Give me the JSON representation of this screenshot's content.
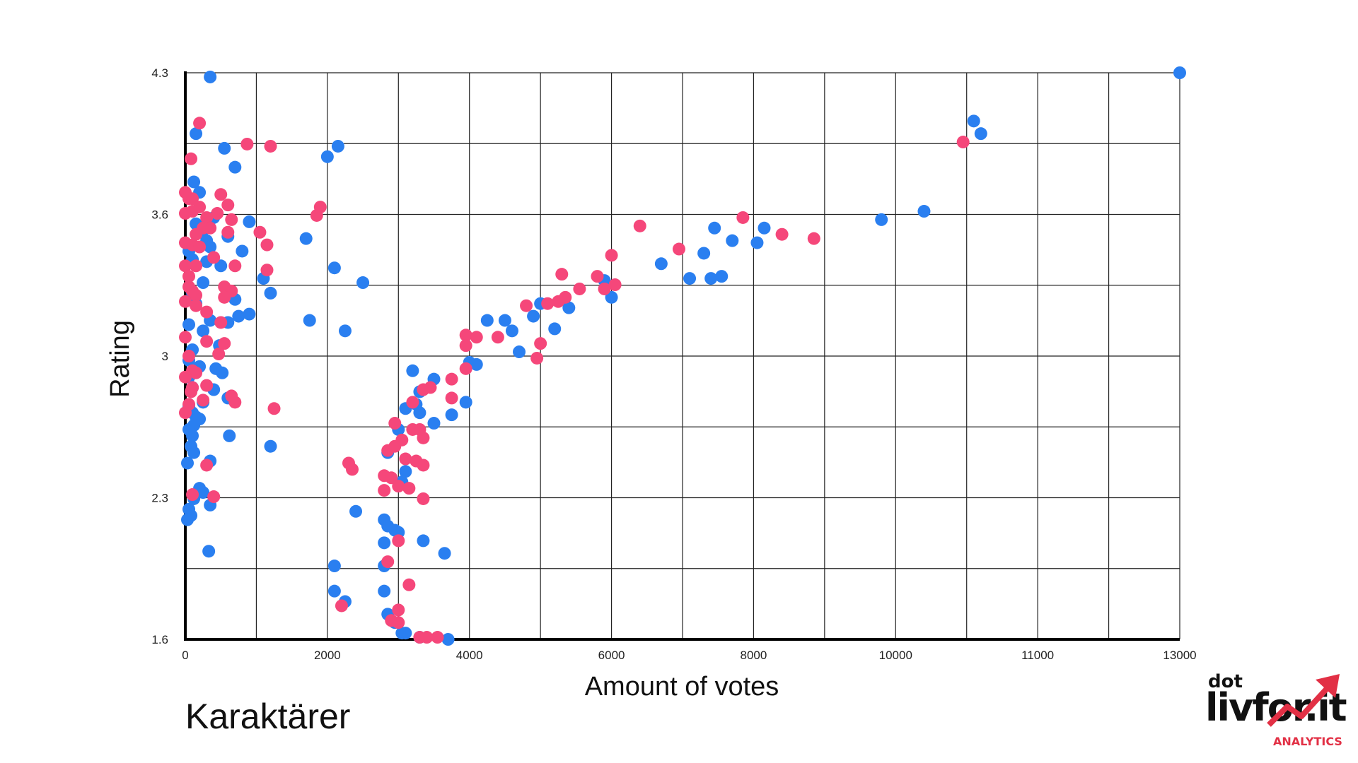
{
  "chart_data": {
    "type": "scatter",
    "title": "",
    "subtitle": "Karaktärer",
    "xlabel": "Amount of votes",
    "ylabel": "Rating",
    "xlim": [
      0,
      14000
    ],
    "ylim": [
      1.6,
      4.3
    ],
    "x_ticks": [
      "0",
      "2000",
      "4000",
      "6000",
      "8000",
      "10000",
      "11000",
      "13000"
    ],
    "y_ticks": [
      "1.6",
      "2.3",
      "3",
      "3.6",
      "4.3"
    ],
    "grid": true,
    "series": [
      {
        "color": "#2a7ff0",
        "points": [
          [
            350,
            4.28
          ],
          [
            150,
            4.01
          ],
          [
            700,
            3.85
          ],
          [
            120,
            3.78
          ],
          [
            200,
            3.73
          ],
          [
            400,
            3.61
          ],
          [
            150,
            3.58
          ],
          [
            250,
            3.55
          ],
          [
            300,
            3.5
          ],
          [
            50,
            3.45
          ],
          [
            100,
            3.41
          ],
          [
            350,
            3.47
          ],
          [
            300,
            3.4
          ],
          [
            500,
            3.38
          ],
          [
            250,
            3.3
          ],
          [
            100,
            3.25
          ],
          [
            150,
            3.2
          ],
          [
            700,
            3.22
          ],
          [
            50,
            3.1
          ],
          [
            350,
            3.12
          ],
          [
            600,
            3.11
          ],
          [
            900,
            3.15
          ],
          [
            750,
            3.14
          ],
          [
            250,
            3.07
          ],
          [
            480,
            3.0
          ],
          [
            100,
            2.98
          ],
          [
            50,
            2.93
          ],
          [
            200,
            2.9
          ],
          [
            430,
            2.89
          ],
          [
            520,
            2.87
          ],
          [
            50,
            2.85
          ],
          [
            100,
            2.8
          ],
          [
            400,
            2.79
          ],
          [
            600,
            2.75
          ],
          [
            250,
            2.73
          ],
          [
            50,
            2.71
          ],
          [
            100,
            2.68
          ],
          [
            150,
            2.66
          ],
          [
            200,
            2.65
          ],
          [
            120,
            2.62
          ],
          [
            50,
            2.6
          ],
          [
            100,
            2.57
          ],
          [
            620,
            2.57
          ],
          [
            80,
            2.52
          ],
          [
            120,
            2.49
          ],
          [
            30,
            2.44
          ],
          [
            350,
            2.45
          ],
          [
            250,
            2.3
          ],
          [
            200,
            2.32
          ],
          [
            120,
            2.27
          ],
          [
            50,
            2.22
          ],
          [
            350,
            2.24
          ],
          [
            80,
            2.19
          ],
          [
            30,
            2.17
          ],
          [
            330,
            2.02
          ],
          [
            900,
            3.59
          ],
          [
            1100,
            3.32
          ],
          [
            1200,
            3.25
          ],
          [
            800,
            3.45
          ],
          [
            600,
            3.52
          ],
          [
            550,
            3.94
          ],
          [
            1700,
            3.51
          ],
          [
            1750,
            3.12
          ],
          [
            2000,
            3.9
          ],
          [
            2150,
            3.95
          ],
          [
            2100,
            3.37
          ],
          [
            2500,
            3.3
          ],
          [
            2250,
            3.07
          ],
          [
            1200,
            2.52
          ],
          [
            2400,
            2.21
          ],
          [
            2100,
            1.95
          ],
          [
            2100,
            1.83
          ],
          [
            2250,
            1.78
          ],
          [
            3200,
            2.88
          ],
          [
            3500,
            2.84
          ],
          [
            3300,
            2.78
          ],
          [
            3250,
            2.72
          ],
          [
            3100,
            2.7
          ],
          [
            3000,
            2.6
          ],
          [
            3300,
            2.68
          ],
          [
            3500,
            2.63
          ],
          [
            3750,
            2.67
          ],
          [
            3950,
            2.73
          ],
          [
            2850,
            2.49
          ],
          [
            3050,
            2.35
          ],
          [
            3100,
            2.4
          ],
          [
            2800,
            2.17
          ],
          [
            2850,
            2.14
          ],
          [
            2950,
            2.12
          ],
          [
            3000,
            2.11
          ],
          [
            2800,
            2.06
          ],
          [
            3350,
            2.07
          ],
          [
            3650,
            2.01
          ],
          [
            2800,
            1.95
          ],
          [
            2800,
            1.83
          ],
          [
            2850,
            1.72
          ],
          [
            2950,
            1.68
          ],
          [
            3050,
            1.63
          ],
          [
            3100,
            1.63
          ],
          [
            3300,
            1.61
          ],
          [
            3700,
            1.6
          ],
          [
            4000,
            2.92
          ],
          [
            4100,
            2.91
          ],
          [
            4250,
            3.12
          ],
          [
            4500,
            3.12
          ],
          [
            4600,
            3.07
          ],
          [
            4700,
            2.97
          ],
          [
            4900,
            3.14
          ],
          [
            5000,
            3.2
          ],
          [
            5200,
            3.08
          ],
          [
            5400,
            3.18
          ],
          [
            5900,
            3.31
          ],
          [
            6000,
            3.23
          ],
          [
            6700,
            3.39
          ],
          [
            7100,
            3.32
          ],
          [
            7300,
            3.44
          ],
          [
            7450,
            3.56
          ],
          [
            7400,
            3.32
          ],
          [
            7550,
            3.33
          ],
          [
            7700,
            3.5
          ],
          [
            8050,
            3.49
          ],
          [
            8150,
            3.56
          ],
          [
            9800,
            3.6
          ],
          [
            10400,
            3.64
          ],
          [
            11100,
            4.07
          ],
          [
            11200,
            4.01
          ],
          [
            14000,
            4.3
          ]
        ]
      },
      {
        "color": "#f5477a",
        "points": [
          [
            200,
            4.06
          ],
          [
            80,
            3.89
          ],
          [
            870,
            3.96
          ],
          [
            1200,
            3.95
          ],
          [
            0,
            3.73
          ],
          [
            50,
            3.7
          ],
          [
            100,
            3.7
          ],
          [
            200,
            3.66
          ],
          [
            500,
            3.72
          ],
          [
            600,
            3.67
          ],
          [
            0,
            3.63
          ],
          [
            100,
            3.64
          ],
          [
            300,
            3.61
          ],
          [
            450,
            3.63
          ],
          [
            650,
            3.6
          ],
          [
            250,
            3.56
          ],
          [
            350,
            3.56
          ],
          [
            150,
            3.53
          ],
          [
            600,
            3.54
          ],
          [
            0,
            3.49
          ],
          [
            100,
            3.48
          ],
          [
            200,
            3.47
          ],
          [
            400,
            3.42
          ],
          [
            0,
            3.38
          ],
          [
            50,
            3.33
          ],
          [
            150,
            3.38
          ],
          [
            700,
            3.38
          ],
          [
            1050,
            3.54
          ],
          [
            1150,
            3.48
          ],
          [
            1150,
            3.36
          ],
          [
            1850,
            3.62
          ],
          [
            1900,
            3.66
          ],
          [
            50,
            3.28
          ],
          [
            100,
            3.26
          ],
          [
            150,
            3.24
          ],
          [
            550,
            3.28
          ],
          [
            650,
            3.26
          ],
          [
            550,
            3.23
          ],
          [
            0,
            3.21
          ],
          [
            150,
            3.19
          ],
          [
            300,
            3.16
          ],
          [
            500,
            3.11
          ],
          [
            0,
            3.04
          ],
          [
            300,
            3.02
          ],
          [
            550,
            3.01
          ],
          [
            470,
            2.96
          ],
          [
            50,
            2.95
          ],
          [
            100,
            2.88
          ],
          [
            150,
            2.87
          ],
          [
            0,
            2.85
          ],
          [
            100,
            2.8
          ],
          [
            300,
            2.81
          ],
          [
            80,
            2.78
          ],
          [
            250,
            2.74
          ],
          [
            50,
            2.72
          ],
          [
            0,
            2.68
          ],
          [
            650,
            2.76
          ],
          [
            700,
            2.73
          ],
          [
            1250,
            2.7
          ],
          [
            300,
            2.43
          ],
          [
            400,
            2.28
          ],
          [
            100,
            2.29
          ],
          [
            2300,
            2.44
          ],
          [
            2350,
            2.41
          ],
          [
            2800,
            2.38
          ],
          [
            2900,
            2.37
          ],
          [
            2800,
            2.31
          ],
          [
            3000,
            2.33
          ],
          [
            3150,
            2.32
          ],
          [
            3350,
            2.27
          ],
          [
            3100,
            2.46
          ],
          [
            3250,
            2.45
          ],
          [
            3350,
            2.43
          ],
          [
            2850,
            2.5
          ],
          [
            2950,
            2.52
          ],
          [
            3050,
            2.55
          ],
          [
            3200,
            2.6
          ],
          [
            3300,
            2.6
          ],
          [
            3350,
            2.56
          ],
          [
            2950,
            2.63
          ],
          [
            3200,
            2.73
          ],
          [
            3350,
            2.79
          ],
          [
            3450,
            2.8
          ],
          [
            3750,
            2.84
          ],
          [
            3950,
            2.89
          ],
          [
            3750,
            2.75
          ],
          [
            3950,
            3.05
          ],
          [
            3950,
            3.0
          ],
          [
            4100,
            3.04
          ],
          [
            4400,
            3.04
          ],
          [
            4800,
            3.19
          ],
          [
            4950,
            2.94
          ],
          [
            5000,
            3.01
          ],
          [
            5100,
            3.2
          ],
          [
            5250,
            3.21
          ],
          [
            5350,
            3.23
          ],
          [
            5300,
            3.34
          ],
          [
            5550,
            3.27
          ],
          [
            5800,
            3.33
          ],
          [
            5900,
            3.27
          ],
          [
            6000,
            3.43
          ],
          [
            6050,
            3.29
          ],
          [
            6400,
            3.57
          ],
          [
            6950,
            3.46
          ],
          [
            7850,
            3.61
          ],
          [
            8400,
            3.53
          ],
          [
            8850,
            3.51
          ],
          [
            10950,
            3.97
          ],
          [
            2850,
            1.97
          ],
          [
            3000,
            2.07
          ],
          [
            3150,
            1.86
          ],
          [
            3000,
            1.74
          ],
          [
            2900,
            1.69
          ],
          [
            3000,
            1.68
          ],
          [
            3300,
            1.61
          ],
          [
            3400,
            1.61
          ],
          [
            3550,
            1.61
          ],
          [
            2200,
            1.76
          ]
        ]
      }
    ]
  }
}
